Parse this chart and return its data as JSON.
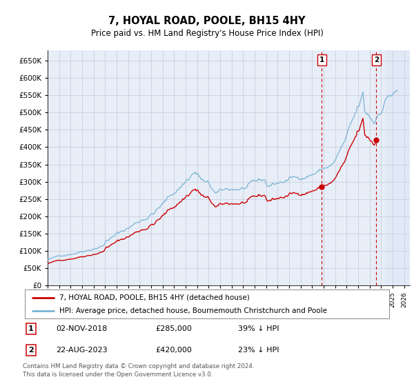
{
  "title": "7, HOYAL ROAD, POOLE, BH15 4HY",
  "subtitle": "Price paid vs. HM Land Registry's House Price Index (HPI)",
  "legend_line1": "7, HOYAL ROAD, POOLE, BH15 4HY (detached house)",
  "legend_line2": "HPI: Average price, detached house, Bournemouth Christchurch and Poole",
  "footer": "Contains HM Land Registry data © Crown copyright and database right 2024.\nThis data is licensed under the Open Government Licence v3.0.",
  "sale1_label": "1",
  "sale1_date": "02-NOV-2018",
  "sale1_price": "£285,000",
  "sale1_hpi": "39% ↓ HPI",
  "sale2_label": "2",
  "sale2_date": "22-AUG-2023",
  "sale2_price": "£420,000",
  "sale2_hpi": "23% ↓ HPI",
  "ylim": [
    0,
    680000
  ],
  "yticks": [
    0,
    50000,
    100000,
    150000,
    200000,
    250000,
    300000,
    350000,
    400000,
    450000,
    500000,
    550000,
    600000,
    650000
  ],
  "hpi_color": "#7ab3d4",
  "price_color": "#cc0000",
  "bg_color": "#e8eef8",
  "grid_color": "#c8d0dc",
  "sale1_x": 2018.833,
  "sale1_y": 285000,
  "sale2_x": 2023.583,
  "sale2_y": 420000,
  "vline_color": "#cc0000",
  "hatch_start": 2024.417,
  "xmin": 1995.0,
  "xmax": 2026.5
}
